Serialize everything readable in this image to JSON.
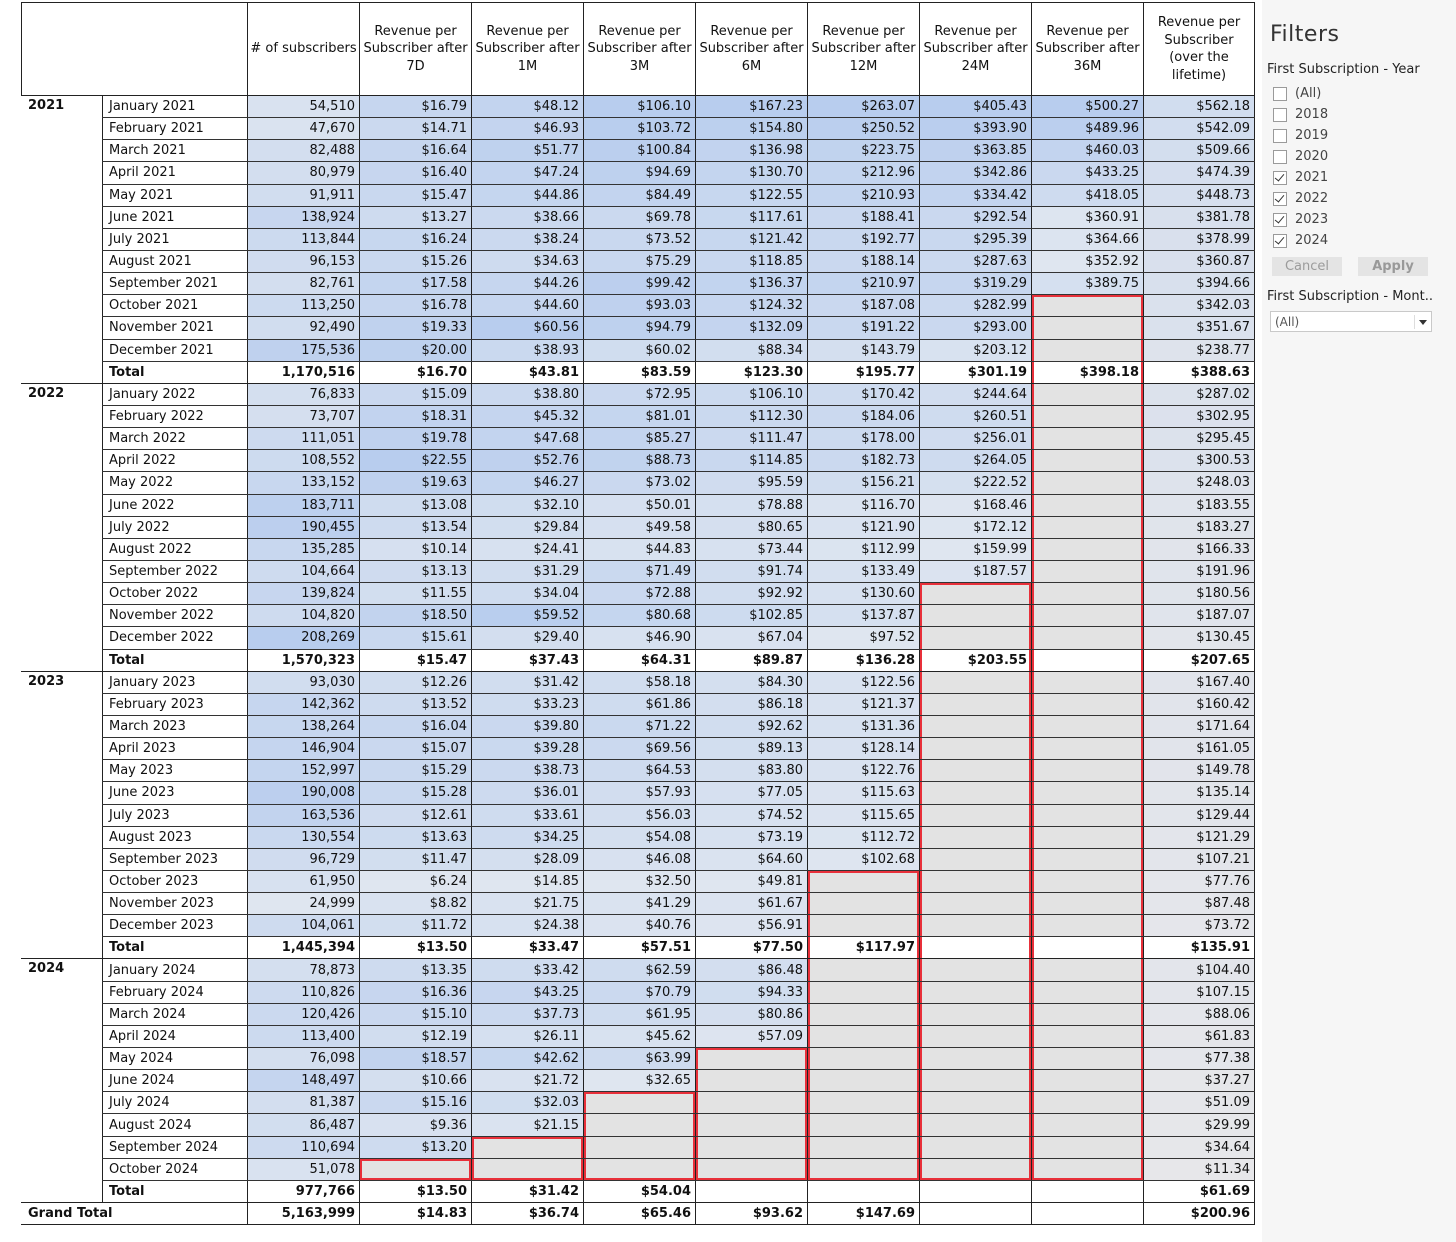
{
  "headers": [
    "# of subscribers",
    "Revenue per Subscriber after 7D",
    "Revenue per Subscriber after 1M",
    "Revenue per Subscriber after 3M",
    "Revenue per Subscriber after 6M",
    "Revenue per Subscriber after 12M",
    "Revenue per Subscriber after 24M",
    "Revenue per Subscriber after 36M",
    "Revenue per Subscriber (over the lifetime)"
  ],
  "colors": {
    "blue_light": "#dfe6f0",
    "blue_mid": "#c9d8ef",
    "blue_strong": "#b8cdee",
    "empty_gray": "#e3e3e3",
    "highlight_red": "#e8303a"
  },
  "years": [
    {
      "year": "2021",
      "months": [
        {
          "name": "January 2021",
          "values": [
            "54,510",
            "$16.79",
            "$48.12",
            "$106.10",
            "$167.23",
            "$263.07",
            "$405.43",
            "$500.27",
            "$562.18"
          ]
        },
        {
          "name": "February 2021",
          "values": [
            "47,670",
            "$14.71",
            "$46.93",
            "$103.72",
            "$154.80",
            "$250.52",
            "$393.90",
            "$489.96",
            "$542.09"
          ]
        },
        {
          "name": "March 2021",
          "values": [
            "82,488",
            "$16.64",
            "$51.77",
            "$100.84",
            "$136.98",
            "$223.75",
            "$363.85",
            "$460.03",
            "$509.66"
          ]
        },
        {
          "name": "April 2021",
          "values": [
            "80,979",
            "$16.40",
            "$47.24",
            "$94.69",
            "$130.70",
            "$212.96",
            "$342.86",
            "$433.25",
            "$474.39"
          ]
        },
        {
          "name": "May 2021",
          "values": [
            "91,911",
            "$15.47",
            "$44.86",
            "$84.49",
            "$122.55",
            "$210.93",
            "$334.42",
            "$418.05",
            "$448.73"
          ]
        },
        {
          "name": "June 2021",
          "values": [
            "138,924",
            "$13.27",
            "$38.66",
            "$69.78",
            "$117.61",
            "$188.41",
            "$292.54",
            "$360.91",
            "$381.78"
          ]
        },
        {
          "name": "July 2021",
          "values": [
            "113,844",
            "$16.24",
            "$38.24",
            "$73.52",
            "$121.42",
            "$192.77",
            "$295.39",
            "$364.66",
            "$378.99"
          ]
        },
        {
          "name": "August 2021",
          "values": [
            "96,153",
            "$15.26",
            "$34.63",
            "$75.29",
            "$118.85",
            "$188.14",
            "$287.63",
            "$352.92",
            "$360.87"
          ]
        },
        {
          "name": "September 2021",
          "values": [
            "82,761",
            "$17.58",
            "$44.26",
            "$99.42",
            "$136.37",
            "$210.97",
            "$319.29",
            "$389.75",
            "$394.66"
          ]
        },
        {
          "name": "October 2021",
          "values": [
            "113,250",
            "$16.78",
            "$44.60",
            "$93.03",
            "$124.32",
            "$187.08",
            "$282.99",
            "",
            "$342.03"
          ]
        },
        {
          "name": "November 2021",
          "values": [
            "92,490",
            "$19.33",
            "$60.56",
            "$94.79",
            "$132.09",
            "$191.22",
            "$293.00",
            "",
            "$351.67"
          ]
        },
        {
          "name": "December 2021",
          "values": [
            "175,536",
            "$20.00",
            "$38.93",
            "$60.02",
            "$88.34",
            "$143.79",
            "$203.12",
            "",
            "$238.77"
          ]
        }
      ],
      "total_label": "Total",
      "total": [
        "1,170,516",
        "$16.70",
        "$43.81",
        "$83.59",
        "$123.30",
        "$195.77",
        "$301.19",
        "$398.18",
        "$388.63"
      ]
    },
    {
      "year": "2022",
      "months": [
        {
          "name": "January 2022",
          "values": [
            "76,833",
            "$15.09",
            "$38.80",
            "$72.95",
            "$106.10",
            "$170.42",
            "$244.64",
            "",
            "$287.02"
          ]
        },
        {
          "name": "February 2022",
          "values": [
            "73,707",
            "$18.31",
            "$45.32",
            "$81.01",
            "$112.30",
            "$184.06",
            "$260.51",
            "",
            "$302.95"
          ]
        },
        {
          "name": "March 2022",
          "values": [
            "111,051",
            "$19.78",
            "$47.68",
            "$85.27",
            "$111.47",
            "$178.00",
            "$256.01",
            "",
            "$295.45"
          ]
        },
        {
          "name": "April 2022",
          "values": [
            "108,552",
            "$22.55",
            "$52.76",
            "$88.73",
            "$114.85",
            "$182.73",
            "$264.05",
            "",
            "$300.53"
          ]
        },
        {
          "name": "May 2022",
          "values": [
            "133,152",
            "$19.63",
            "$46.27",
            "$73.02",
            "$95.59",
            "$156.21",
            "$222.52",
            "",
            "$248.03"
          ]
        },
        {
          "name": "June 2022",
          "values": [
            "183,711",
            "$13.08",
            "$32.10",
            "$50.01",
            "$78.88",
            "$116.70",
            "$168.46",
            "",
            "$183.55"
          ]
        },
        {
          "name": "July 2022",
          "values": [
            "190,455",
            "$13.54",
            "$29.84",
            "$49.58",
            "$80.65",
            "$121.90",
            "$172.12",
            "",
            "$183.27"
          ]
        },
        {
          "name": "August 2022",
          "values": [
            "135,285",
            "$10.14",
            "$24.41",
            "$44.83",
            "$73.44",
            "$112.99",
            "$159.99",
            "",
            "$166.33"
          ]
        },
        {
          "name": "September 2022",
          "values": [
            "104,664",
            "$13.13",
            "$31.29",
            "$71.49",
            "$91.74",
            "$133.49",
            "$187.57",
            "",
            "$191.96"
          ]
        },
        {
          "name": "October 2022",
          "values": [
            "139,824",
            "$11.55",
            "$34.04",
            "$72.88",
            "$92.92",
            "$130.60",
            "",
            "",
            "$180.56"
          ]
        },
        {
          "name": "November 2022",
          "values": [
            "104,820",
            "$18.50",
            "$59.52",
            "$80.68",
            "$102.85",
            "$137.87",
            "",
            "",
            "$187.07"
          ]
        },
        {
          "name": "December 2022",
          "values": [
            "208,269",
            "$15.61",
            "$29.40",
            "$46.90",
            "$67.04",
            "$97.52",
            "",
            "",
            "$130.45"
          ]
        }
      ],
      "total_label": "Total",
      "total": [
        "1,570,323",
        "$15.47",
        "$37.43",
        "$64.31",
        "$89.87",
        "$136.28",
        "$203.55",
        "",
        "$207.65"
      ]
    },
    {
      "year": "2023",
      "months": [
        {
          "name": "January 2023",
          "values": [
            "93,030",
            "$12.26",
            "$31.42",
            "$58.18",
            "$84.30",
            "$122.56",
            "",
            "",
            "$167.40"
          ]
        },
        {
          "name": "February 2023",
          "values": [
            "142,362",
            "$13.52",
            "$33.23",
            "$61.86",
            "$86.18",
            "$121.37",
            "",
            "",
            "$160.42"
          ]
        },
        {
          "name": "March 2023",
          "values": [
            "138,264",
            "$16.04",
            "$39.80",
            "$71.22",
            "$92.62",
            "$131.36",
            "",
            "",
            "$171.64"
          ]
        },
        {
          "name": "April 2023",
          "values": [
            "146,904",
            "$15.07",
            "$39.28",
            "$69.56",
            "$89.13",
            "$128.14",
            "",
            "",
            "$161.05"
          ]
        },
        {
          "name": "May 2023",
          "values": [
            "152,997",
            "$15.29",
            "$38.73",
            "$64.53",
            "$83.80",
            "$122.76",
            "",
            "",
            "$149.78"
          ]
        },
        {
          "name": "June 2023",
          "values": [
            "190,008",
            "$15.28",
            "$36.01",
            "$57.93",
            "$77.05",
            "$115.63",
            "",
            "",
            "$135.14"
          ]
        },
        {
          "name": "July 2023",
          "values": [
            "163,536",
            "$12.61",
            "$33.61",
            "$56.03",
            "$74.52",
            "$115.65",
            "",
            "",
            "$129.44"
          ]
        },
        {
          "name": "August 2023",
          "values": [
            "130,554",
            "$13.63",
            "$34.25",
            "$54.08",
            "$73.19",
            "$112.72",
            "",
            "",
            "$121.29"
          ]
        },
        {
          "name": "September 2023",
          "values": [
            "96,729",
            "$11.47",
            "$28.09",
            "$46.08",
            "$64.60",
            "$102.68",
            "",
            "",
            "$107.21"
          ]
        },
        {
          "name": "October 2023",
          "values": [
            "61,950",
            "$6.24",
            "$14.85",
            "$32.50",
            "$49.81",
            "",
            "",
            "",
            "$77.76"
          ]
        },
        {
          "name": "November 2023",
          "values": [
            "24,999",
            "$8.82",
            "$21.75",
            "$41.29",
            "$61.67",
            "",
            "",
            "",
            "$87.48"
          ]
        },
        {
          "name": "December 2023",
          "values": [
            "104,061",
            "$11.72",
            "$24.38",
            "$40.76",
            "$56.91",
            "",
            "",
            "",
            "$73.72"
          ]
        }
      ],
      "total_label": "Total",
      "total": [
        "1,445,394",
        "$13.50",
        "$33.47",
        "$57.51",
        "$77.50",
        "$117.97",
        "",
        "",
        "$135.91"
      ]
    },
    {
      "year": "2024",
      "months": [
        {
          "name": "January 2024",
          "values": [
            "78,873",
            "$13.35",
            "$33.42",
            "$62.59",
            "$86.48",
            "",
            "",
            "",
            "$104.40"
          ]
        },
        {
          "name": "February 2024",
          "values": [
            "110,826",
            "$16.36",
            "$43.25",
            "$70.79",
            "$94.33",
            "",
            "",
            "",
            "$107.15"
          ]
        },
        {
          "name": "March 2024",
          "values": [
            "120,426",
            "$15.10",
            "$37.73",
            "$61.95",
            "$80.86",
            "",
            "",
            "",
            "$88.06"
          ]
        },
        {
          "name": "April 2024",
          "values": [
            "113,400",
            "$12.19",
            "$26.11",
            "$45.62",
            "$57.09",
            "",
            "",
            "",
            "$61.83"
          ]
        },
        {
          "name": "May 2024",
          "values": [
            "76,098",
            "$18.57",
            "$42.62",
            "$63.99",
            "",
            "",
            "",
            "",
            "$77.38"
          ]
        },
        {
          "name": "June 2024",
          "values": [
            "148,497",
            "$10.66",
            "$21.72",
            "$32.65",
            "",
            "",
            "",
            "",
            "$37.27"
          ]
        },
        {
          "name": "July 2024",
          "values": [
            "81,387",
            "$15.16",
            "$32.03",
            "",
            "",
            "",
            "",
            "",
            "$51.09"
          ]
        },
        {
          "name": "August 2024",
          "values": [
            "86,487",
            "$9.36",
            "$21.15",
            "",
            "",
            "",
            "",
            "",
            "$29.99"
          ]
        },
        {
          "name": "September 2024",
          "values": [
            "110,694",
            "$13.20",
            "",
            "",
            "",
            "",
            "",
            "",
            "$34.64"
          ]
        },
        {
          "name": "October 2024",
          "values": [
            "51,078",
            "",
            "",
            "",
            "",
            "",
            "",
            "",
            "$11.34"
          ]
        }
      ],
      "total_label": "Total",
      "total": [
        "977,766",
        "$13.50",
        "$31.42",
        "$54.04",
        "",
        "",
        "",
        "",
        "$61.69"
      ]
    }
  ],
  "grand_total": {
    "label": "Grand Total",
    "values": [
      "5,163,999",
      "$14.83",
      "$36.74",
      "$65.46",
      "$93.62",
      "$147.69",
      "",
      "",
      "$200.96"
    ]
  },
  "filters": {
    "title": "Filters",
    "year_filter": {
      "label": "First Subscription - Year",
      "options": [
        {
          "label": "(All)",
          "checked": false
        },
        {
          "label": "2018",
          "checked": false
        },
        {
          "label": "2019",
          "checked": false
        },
        {
          "label": "2020",
          "checked": false
        },
        {
          "label": "2021",
          "checked": true
        },
        {
          "label": "2022",
          "checked": true
        },
        {
          "label": "2023",
          "checked": true
        },
        {
          "label": "2024",
          "checked": true
        }
      ],
      "cancel_label": "Cancel",
      "apply_label": "Apply"
    },
    "month_filter": {
      "label": "First Subscription - Mont..",
      "selected": "(All)"
    }
  }
}
